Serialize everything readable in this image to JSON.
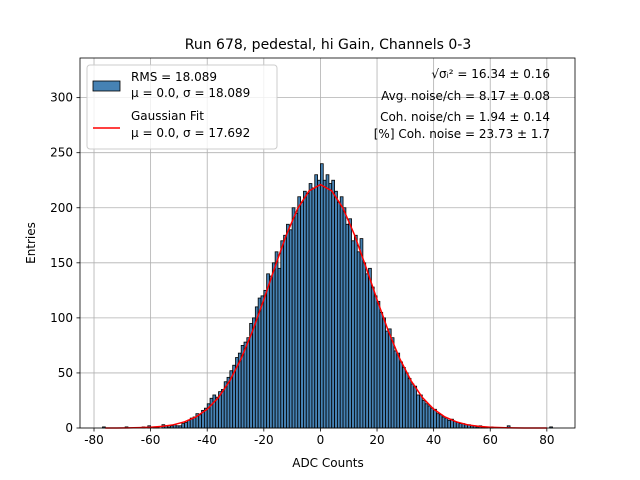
{
  "chart_data": {
    "type": "histogram",
    "title": "Run 678, pedestal, hi Gain, Channels 0-3",
    "xlabel": "ADC Counts",
    "ylabel": "Entries",
    "bins": [
      -77,
      -76,
      -75,
      -74,
      -73,
      -72,
      -71,
      -70,
      -69,
      -68,
      -67,
      -66,
      -65,
      -64,
      -63,
      -62,
      -61,
      -60,
      -59,
      -58,
      -57,
      -56,
      -55,
      -54,
      -53,
      -52,
      -51,
      -50,
      -49,
      -48,
      -47,
      -46,
      -45,
      -44,
      -43,
      -42,
      -41,
      -40,
      -39,
      -38,
      -37,
      -36,
      -35,
      -34,
      -33,
      -32,
      -31,
      -30,
      -29,
      -28,
      -27,
      -26,
      -25,
      -24,
      -23,
      -22,
      -21,
      -20,
      -19,
      -18,
      -17,
      -16,
      -15,
      -14,
      -13,
      -12,
      -11,
      -10,
      -9,
      -8,
      -7,
      -6,
      -5,
      -4,
      -3,
      -2,
      -1,
      0,
      1,
      2,
      3,
      4,
      5,
      6,
      7,
      8,
      9,
      10,
      11,
      12,
      13,
      14,
      15,
      16,
      17,
      18,
      19,
      20,
      21,
      22,
      23,
      24,
      25,
      26,
      27,
      28,
      29,
      30,
      31,
      32,
      33,
      34,
      35,
      36,
      37,
      38,
      39,
      40,
      41,
      42,
      43,
      44,
      45,
      46,
      47,
      48,
      49,
      50,
      51,
      52,
      53,
      54,
      55,
      56,
      57,
      58,
      59,
      60,
      61,
      62,
      63,
      64,
      65,
      66,
      67,
      68,
      69,
      70,
      71,
      72,
      73,
      74,
      75,
      76,
      77,
      78,
      79,
      80,
      81,
      82
    ],
    "series": [
      {
        "name": [
          "RMS = 18.089",
          "μ = 0.0, σ = 18.089"
        ],
        "color": "#4682b4",
        "edgecolor": "#000000",
        "values": [
          1,
          0,
          0,
          0,
          0,
          0,
          0,
          0,
          1,
          0,
          0,
          0,
          0,
          0,
          1,
          0,
          2,
          0,
          1,
          1,
          0,
          3,
          2,
          1,
          2,
          3,
          2,
          2,
          4,
          5,
          7,
          9,
          10,
          13,
          12,
          16,
          18,
          22,
          27,
          30,
          28,
          33,
          35,
          42,
          46,
          52,
          57,
          64,
          68,
          75,
          78,
          82,
          95,
          100,
          110,
          118,
          120,
          125,
          140,
          138,
          150,
          160,
          145,
          170,
          175,
          185,
          180,
          200,
          195,
          210,
          205,
          215,
          213,
          222,
          218,
          230,
          225,
          240,
          225,
          230,
          222,
          225,
          215,
          205,
          210,
          200,
          185,
          190,
          170,
          175,
          160,
          172,
          150,
          140,
          145,
          128,
          120,
          115,
          105,
          100,
          88,
          90,
          82,
          70,
          68,
          60,
          55,
          50,
          45,
          40,
          38,
          30,
          30,
          25,
          22,
          20,
          18,
          17,
          13,
          12,
          10,
          9,
          7,
          8,
          6,
          5,
          4,
          4,
          3,
          3,
          2,
          2,
          1,
          2,
          1,
          1,
          0,
          1,
          0,
          0,
          0,
          0,
          0,
          2,
          0,
          0,
          0,
          0,
          0,
          0,
          0,
          0,
          0,
          0,
          0,
          0,
          0,
          0,
          1
        ]
      }
    ],
    "fit": {
      "name": [
        "Gaussian Fit",
        "μ = 0.0, σ = 17.692"
      ],
      "color": "#ff0000",
      "x": [
        -76,
        -72,
        -68,
        -64,
        -60,
        -56,
        -52,
        -48,
        -44,
        -40,
        -36,
        -32,
        -28,
        -24,
        -20,
        -16,
        -12,
        -8,
        -4,
        0,
        4,
        8,
        12,
        16,
        20,
        24,
        28,
        32,
        36,
        40,
        44,
        48,
        52,
        56,
        60,
        64,
        68,
        72,
        76,
        80
      ],
      "values": [
        0,
        0,
        0.1,
        0.3,
        0.7,
        1.5,
        2.9,
        5.6,
        10,
        17.1,
        27.8,
        43,
        63.1,
        88,
        116.6,
        146.8,
        175.6,
        199.5,
        215.4,
        221,
        215.4,
        199.5,
        175.6,
        146.8,
        116.6,
        88,
        63.1,
        43,
        27.8,
        17.1,
        10,
        5.6,
        2.9,
        1.5,
        0.7,
        0.3,
        0.1,
        0,
        0,
        0
      ]
    },
    "annotations": [
      "√σᵢ² = 16.34 ± 0.16",
      "Avg. noise/ch = 8.17 ± 0.08",
      "Coh. noise/ch = 1.94 ± 0.14",
      "[%] Coh. noise = 23.73 ± 1.7"
    ],
    "xlim": [
      -84.95,
      89.95
    ],
    "ylim": [
      0,
      336
    ],
    "xticks": [
      -80,
      -60,
      -40,
      -20,
      0,
      20,
      40,
      60,
      80
    ],
    "yticks": [
      0,
      50,
      100,
      150,
      200,
      250,
      300
    ],
    "grid": true,
    "legend": "upper left"
  }
}
